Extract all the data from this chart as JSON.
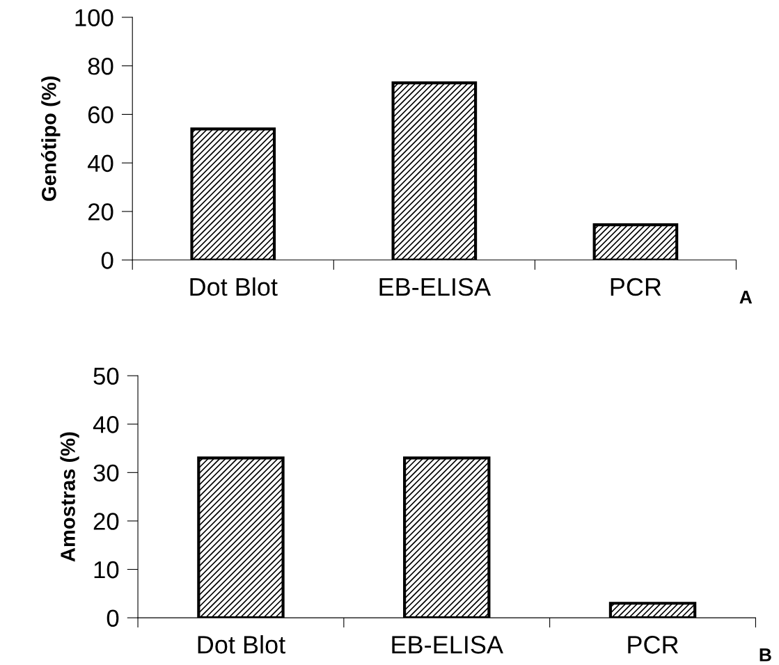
{
  "chart_data": [
    {
      "type": "bar",
      "categories": [
        "Dot Blot",
        "EB-ELISA",
        "PCR"
      ],
      "values": [
        54,
        73,
        14.5
      ],
      "color": "#000000",
      "ylabel": "Genótipo (%)",
      "ylim": [
        0,
        100
      ],
      "yticks": [
        0,
        20,
        40,
        60,
        80,
        100
      ],
      "grid": false,
      "annotations": [
        "A"
      ]
    },
    {
      "type": "bar",
      "categories": [
        "Dot Blot",
        "EB-ELISA",
        "PCR"
      ],
      "values": [
        33,
        33,
        3
      ],
      "color": "#000000",
      "ylabel": "Amostras (%)",
      "ylim": [
        0,
        50
      ],
      "yticks": [
        0,
        10,
        20,
        30,
        40,
        50
      ],
      "grid": false,
      "annotations": [
        "B"
      ]
    }
  ]
}
